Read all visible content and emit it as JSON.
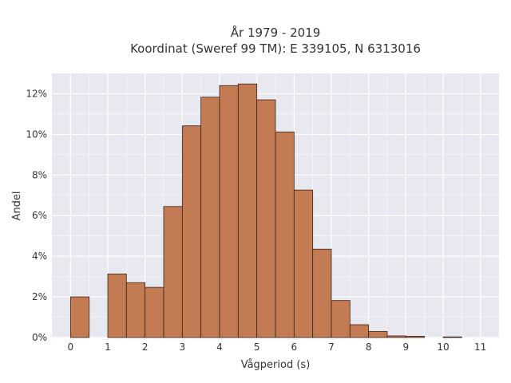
{
  "chart_data": {
    "type": "bar",
    "title_lines": [
      "År 1979 - 2019",
      "Koordinat (Sweref 99 TM): E 339105, N 6313016"
    ],
    "xlabel": "Vågperiod (s)",
    "ylabel": "Andel",
    "xlim": [
      -0.5,
      11.5
    ],
    "ylim": [
      0,
      0.13
    ],
    "x_ticks": [
      0,
      1,
      2,
      3,
      4,
      5,
      6,
      7,
      8,
      9,
      10,
      11
    ],
    "x_tick_labels": [
      "0",
      "1",
      "2",
      "3",
      "4",
      "5",
      "6",
      "7",
      "8",
      "9",
      "10",
      "11"
    ],
    "y_ticks": [
      0,
      0.02,
      0.04,
      0.06,
      0.08,
      0.1,
      0.12
    ],
    "y_tick_labels": [
      "0%",
      "2%",
      "4%",
      "6%",
      "8%",
      "10%",
      "12%"
    ],
    "bin_width": 0.5,
    "bins": [
      {
        "start": 0.0,
        "value": 0.02
      },
      {
        "start": 1.0,
        "value": 0.0313
      },
      {
        "start": 1.5,
        "value": 0.027
      },
      {
        "start": 2.0,
        "value": 0.0247
      },
      {
        "start": 2.5,
        "value": 0.0645
      },
      {
        "start": 3.0,
        "value": 0.1042
      },
      {
        "start": 3.5,
        "value": 0.1183
      },
      {
        "start": 4.0,
        "value": 0.124
      },
      {
        "start": 4.5,
        "value": 0.1248
      },
      {
        "start": 5.0,
        "value": 0.117
      },
      {
        "start": 5.5,
        "value": 0.1012
      },
      {
        "start": 6.0,
        "value": 0.0726
      },
      {
        "start": 6.5,
        "value": 0.0435
      },
      {
        "start": 7.0,
        "value": 0.0182
      },
      {
        "start": 7.5,
        "value": 0.0063
      },
      {
        "start": 8.0,
        "value": 0.003
      },
      {
        "start": 8.5,
        "value": 0.0008
      },
      {
        "start": 9.0,
        "value": 0.0006
      },
      {
        "start": 10.0,
        "value": 0.0003
      }
    ],
    "grid": true,
    "colors": {
      "bar_fill": "#c27b53",
      "bar_edge": "#3d2416",
      "plot_background": "#e8e8f0",
      "grid": "#ffffff"
    }
  }
}
